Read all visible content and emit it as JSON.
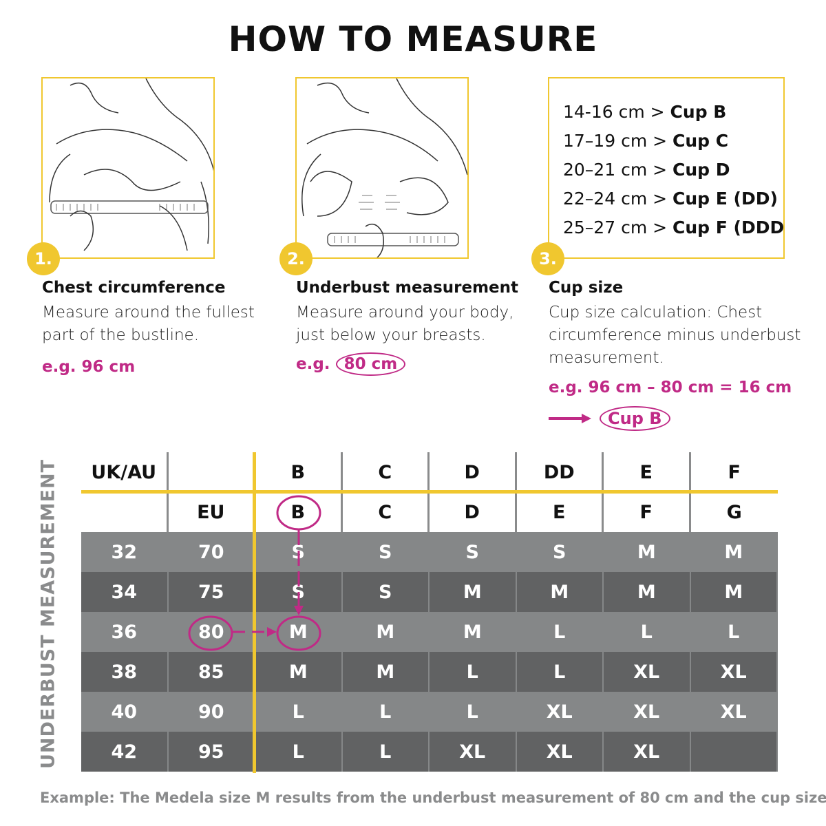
{
  "title": "HOW TO MEASURE",
  "colors": {
    "accent_yellow": "#f0c72f",
    "highlight_magenta": "#c02a86",
    "row_light": "#858788",
    "row_dark": "#616263",
    "label_gray": "#8a8b8c"
  },
  "steps": [
    {
      "number": "1.",
      "title": "Chest circumference",
      "description": "Measure around the fullest part of the bustline.",
      "example": "e.g. 96 cm",
      "illustration": "measuring-chest-illustration"
    },
    {
      "number": "2.",
      "title": "Underbust measurement",
      "description": "Measure around your body, just below your breasts.",
      "example_prefix": "e.g.",
      "example_value": "80 cm",
      "illustration": "measuring-underbust-illustration"
    },
    {
      "number": "3.",
      "title": "Cup size",
      "description": "Cup size calculation: Chest circumference minus underbust measurement.",
      "example": "e.g. 96 cm – 80 cm = 16 cm",
      "result": "Cup B"
    }
  ],
  "cup_ranges": [
    {
      "range": "14-16 cm >",
      "cup": "Cup B"
    },
    {
      "range": "17–19 cm >",
      "cup": "Cup C"
    },
    {
      "range": "20–21 cm >",
      "cup": "Cup D"
    },
    {
      "range": "22–24 cm >",
      "cup": "Cup E (DD)"
    },
    {
      "range": "25–27 cm >",
      "cup": "Cup F (DDD)"
    }
  ],
  "table": {
    "vertical_label": "UNDERBUST MEASUREMENT",
    "header_uk": [
      "UK/AU",
      "",
      "B",
      "C",
      "D",
      "DD",
      "E",
      "F"
    ],
    "header_eu": [
      "",
      "EU",
      "B",
      "C",
      "D",
      "E",
      "F",
      "G"
    ],
    "rows": [
      [
        "32",
        "70",
        "S",
        "S",
        "S",
        "S",
        "M",
        "M"
      ],
      [
        "34",
        "75",
        "S",
        "S",
        "M",
        "M",
        "M",
        "M"
      ],
      [
        "36",
        "80",
        "M",
        "M",
        "M",
        "L",
        "L",
        "L"
      ],
      [
        "38",
        "85",
        "M",
        "M",
        "L",
        "L",
        "XL",
        "XL"
      ],
      [
        "40",
        "90",
        "L",
        "L",
        "L",
        "XL",
        "XL",
        "XL"
      ],
      [
        "42",
        "95",
        "L",
        "L",
        "XL",
        "XL",
        "XL",
        ""
      ]
    ],
    "highlight": {
      "eu": "80",
      "cup": "B",
      "size": "M"
    }
  },
  "footnote": "Example: The Medela size M results from the underbust measurement of 80 cm and the cup size B."
}
